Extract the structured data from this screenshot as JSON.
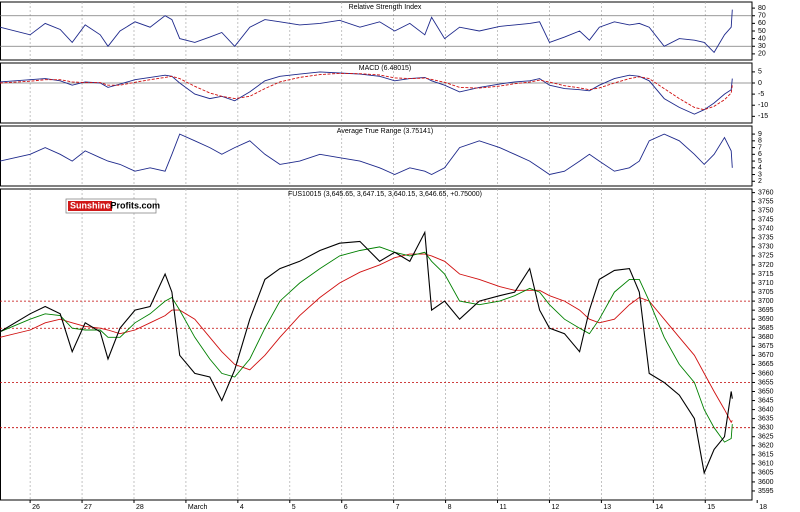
{
  "chart_data": [
    {
      "type": "line",
      "title": "Relative Strength Index",
      "x": [
        -0.58,
        0,
        0.29,
        0.58,
        0.81,
        1.06,
        1.35,
        1.5,
        1.73,
        2.02,
        2.31,
        2.6,
        2.73,
        2.88,
        3.17,
        3.46,
        3.69,
        3.94,
        4.23,
        4.52,
        4.81,
        5.19,
        5.58,
        5.96,
        6.35,
        6.73,
        7.02,
        7.31,
        7.6,
        7.73,
        7.98,
        8.27,
        8.65,
        9.04,
        9.33,
        9.62,
        9.81,
        10,
        10.29,
        10.58,
        10.77,
        10.96,
        11.25,
        11.54,
        11.73,
        11.92,
        12.21,
        12.5,
        12.79,
        12.98,
        13.17,
        13.37,
        13.5,
        13.52
      ],
      "series": [
        {
          "color": "#1f2a8c",
          "values": [
            55,
            45,
            60,
            52,
            35,
            58,
            45,
            30,
            50,
            62,
            55,
            70,
            65,
            40,
            35,
            42,
            48,
            30,
            55,
            65,
            62,
            58,
            60,
            64,
            55,
            62,
            50,
            60,
            45,
            68,
            40,
            55,
            50,
            56,
            58,
            60,
            62,
            35,
            42,
            50,
            38,
            55,
            62,
            58,
            60,
            55,
            30,
            40,
            38,
            35,
            22,
            45,
            55,
            78
          ]
        }
      ],
      "xlim": [
        -0.58,
        13.9
      ],
      "ylim": [
        12,
        88
      ],
      "yticks": [
        20,
        30,
        40,
        50,
        60,
        70,
        80
      ],
      "hlines": [
        30,
        70
      ]
    },
    {
      "type": "line",
      "title": "MACD (6.48015)",
      "x": [
        -0.58,
        0,
        0.29,
        0.58,
        0.81,
        1.06,
        1.35,
        1.5,
        1.73,
        2.02,
        2.31,
        2.6,
        2.73,
        2.88,
        3.17,
        3.46,
        3.69,
        3.94,
        4.23,
        4.52,
        4.81,
        5.19,
        5.58,
        5.96,
        6.35,
        6.73,
        7.02,
        7.31,
        7.6,
        7.73,
        7.98,
        8.27,
        8.65,
        9.04,
        9.33,
        9.62,
        9.81,
        10,
        10.29,
        10.58,
        10.77,
        10.96,
        11.25,
        11.54,
        11.73,
        11.92,
        12.21,
        12.5,
        12.79,
        12.98,
        13.17,
        13.37,
        13.5,
        13.52
      ],
      "series": [
        {
          "color": "#1f2a8c",
          "values": [
            0.5,
            1.5,
            2,
            1,
            -1,
            0.5,
            0,
            -2,
            -0.5,
            1.5,
            2.5,
            3.5,
            3,
            0,
            -5,
            -7,
            -6,
            -8,
            -4,
            1,
            3,
            4,
            5,
            4.5,
            4,
            3,
            1,
            2,
            2.5,
            1,
            -1,
            -4,
            -2,
            -0.5,
            0.5,
            1,
            2,
            -1,
            -2.5,
            -3,
            -3.5,
            -1,
            2,
            3.5,
            3,
            1,
            -7,
            -11,
            -14,
            -12,
            -9,
            -5,
            -3,
            2
          ]
        },
        {
          "color": "#d01010",
          "dashed": true,
          "values": [
            0,
            0.8,
            1.5,
            1.5,
            0.5,
            0.2,
            0.2,
            -1,
            -1,
            0.3,
            1.5,
            2.5,
            3,
            2,
            -1.5,
            -4.5,
            -6,
            -7,
            -6,
            -2.5,
            0.5,
            2.5,
            3.8,
            4.3,
            4.2,
            3.6,
            2.3,
            2,
            2.2,
            1.6,
            0.3,
            -2,
            -2.3,
            -1.4,
            -0.3,
            0.4,
            1.3,
            0.4,
            -1.2,
            -2.2,
            -3,
            -2.2,
            0,
            2,
            2.8,
            2,
            -2.5,
            -7,
            -11,
            -12,
            -10.5,
            -7.5,
            -4.5,
            -1
          ]
        }
      ],
      "xlim": [
        -0.58,
        13.9
      ],
      "ylim": [
        -18,
        9
      ],
      "yticks": [
        -15,
        -10,
        -5,
        0,
        5
      ],
      "hlines": [
        0
      ]
    },
    {
      "type": "line",
      "title": "Average True Range (3.75141)",
      "x": [
        -0.58,
        0,
        0.29,
        0.58,
        0.81,
        1.06,
        1.35,
        1.5,
        1.73,
        2.02,
        2.31,
        2.6,
        2.73,
        2.88,
        3.17,
        3.46,
        3.69,
        3.94,
        4.23,
        4.52,
        4.81,
        5.19,
        5.58,
        5.96,
        6.35,
        6.73,
        7.02,
        7.31,
        7.6,
        7.73,
        7.98,
        8.27,
        8.65,
        9.04,
        9.33,
        9.62,
        9.81,
        10,
        10.29,
        10.58,
        10.77,
        10.96,
        11.25,
        11.54,
        11.73,
        11.92,
        12.21,
        12.5,
        12.79,
        12.98,
        13.17,
        13.37,
        13.5,
        13.52
      ],
      "series": [
        {
          "color": "#1f2a8c",
          "values": [
            5,
            6,
            7,
            6,
            5,
            6.5,
            5.5,
            5,
            4.5,
            3.5,
            4,
            3.5,
            6,
            9,
            8,
            7,
            6,
            7,
            8,
            6,
            4.5,
            5,
            6,
            5.5,
            5,
            4,
            3,
            4,
            3.5,
            3,
            4,
            7,
            8,
            7,
            6,
            5,
            4,
            3,
            3.5,
            5,
            6,
            5,
            3.5,
            4,
            5,
            8,
            9,
            8,
            6,
            4.5,
            6,
            8.5,
            6.5,
            4
          ]
        }
      ],
      "xlim": [
        -0.58,
        13.9
      ],
      "ylim": [
        1.3,
        10.2
      ],
      "yticks": [
        2,
        3,
        4,
        5,
        6,
        7,
        8,
        9
      ]
    },
    {
      "type": "line",
      "title": "FUS10015 (3,645.65, 3,647.15, 3,640.15, 3,646.65, +0.75000)",
      "logo": [
        "Sunshine",
        "Profits.com"
      ],
      "x": [
        -0.58,
        0,
        0.29,
        0.58,
        0.81,
        1.06,
        1.35,
        1.5,
        1.73,
        2.02,
        2.31,
        2.6,
        2.73,
        2.88,
        3.17,
        3.46,
        3.69,
        3.94,
        4.23,
        4.52,
        4.81,
        5.19,
        5.58,
        5.96,
        6.35,
        6.73,
        7.02,
        7.31,
        7.6,
        7.73,
        7.98,
        8.27,
        8.65,
        9.04,
        9.33,
        9.62,
        9.81,
        10,
        10.29,
        10.58,
        10.77,
        10.96,
        11.25,
        11.54,
        11.73,
        11.92,
        12.21,
        12.5,
        12.79,
        12.98,
        13.17,
        13.37,
        13.5,
        13.52
      ],
      "series": [
        {
          "color": "#d01010",
          "values": [
            3680,
            3684,
            3688,
            3690,
            3688,
            3686,
            3685,
            3684,
            3682,
            3684,
            3688,
            3692,
            3695,
            3695,
            3690,
            3680,
            3672,
            3665,
            3662,
            3670,
            3680,
            3692,
            3702,
            3710,
            3716,
            3720,
            3724,
            3726,
            3726,
            3725,
            3722,
            3715,
            3712,
            3708,
            3706,
            3706,
            3706,
            3703,
            3700,
            3695,
            3690,
            3688,
            3690,
            3698,
            3702,
            3700,
            3690,
            3680,
            3670,
            3660,
            3650,
            3640,
            3633,
            3634
          ]
        },
        {
          "color": "#008000",
          "values": [
            3683,
            3690,
            3693,
            3692,
            3685,
            3684,
            3684,
            3680,
            3680,
            3688,
            3693,
            3700,
            3702,
            3695,
            3680,
            3668,
            3660,
            3658,
            3668,
            3685,
            3700,
            3710,
            3718,
            3725,
            3728,
            3730,
            3727,
            3725,
            3727,
            3722,
            3715,
            3700,
            3698,
            3700,
            3703,
            3707,
            3705,
            3698,
            3690,
            3685,
            3682,
            3690,
            3705,
            3712,
            3712,
            3700,
            3680,
            3665,
            3655,
            3640,
            3630,
            3622,
            3624,
            3632
          ]
        },
        {
          "color": "#000000",
          "values": [
            3683,
            3693,
            3697,
            3693,
            3672,
            3688,
            3683,
            3668,
            3685,
            3695,
            3697,
            3715,
            3705,
            3670,
            3660,
            3658,
            3645,
            3662,
            3690,
            3712,
            3718,
            3722,
            3728,
            3732,
            3733,
            3722,
            3727,
            3722,
            3738,
            3695,
            3700,
            3690,
            3700,
            3703,
            3705,
            3718,
            3695,
            3685,
            3682,
            3672,
            3695,
            3712,
            3717,
            3718,
            3705,
            3660,
            3655,
            3648,
            3635,
            3605,
            3618,
            3625,
            3650,
            3646
          ]
        }
      ],
      "hlines": [
        3700,
        3685,
        3655,
        3630
      ],
      "xlim": [
        -0.58,
        13.9
      ],
      "ylim": [
        3590,
        3762
      ],
      "yticks": [
        3595,
        3600,
        3605,
        3610,
        3615,
        3620,
        3625,
        3630,
        3635,
        3640,
        3645,
        3650,
        3655,
        3660,
        3665,
        3670,
        3675,
        3680,
        3685,
        3690,
        3695,
        3700,
        3705,
        3710,
        3715,
        3720,
        3725,
        3730,
        3735,
        3740,
        3745,
        3750,
        3755,
        3760
      ],
      "xticks": [
        {
          "value": 0,
          "label": "26"
        },
        {
          "value": 1,
          "label": "27"
        },
        {
          "value": 2,
          "label": "28"
        },
        {
          "value": 3,
          "label": "March"
        },
        {
          "value": 4,
          "label": "4"
        },
        {
          "value": 5,
          "label": "5"
        },
        {
          "value": 6,
          "label": "6"
        },
        {
          "value": 7,
          "label": "7"
        },
        {
          "value": 8,
          "label": "8"
        },
        {
          "value": 9,
          "label": "11"
        },
        {
          "value": 10,
          "label": "12"
        },
        {
          "value": 11,
          "label": "13"
        },
        {
          "value": 12,
          "label": "14"
        },
        {
          "value": 13,
          "label": "15"
        },
        {
          "value": 14,
          "label": "18"
        }
      ]
    }
  ]
}
